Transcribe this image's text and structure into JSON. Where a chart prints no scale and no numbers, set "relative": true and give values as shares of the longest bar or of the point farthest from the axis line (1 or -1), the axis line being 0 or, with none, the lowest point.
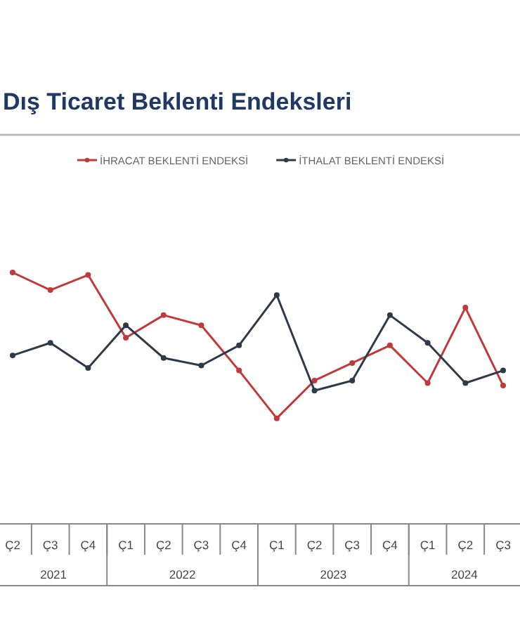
{
  "chart_data": {
    "type": "line",
    "title": "Dış Ticaret Beklenti Endeksleri",
    "relative": true,
    "marker": "circle",
    "legend": "top",
    "categories": [
      "Ç2",
      "Ç3",
      "Ç4",
      "Ç1",
      "Ç2",
      "Ç3",
      "Ç4",
      "Ç1",
      "Ç2",
      "Ç3",
      "Ç4",
      "Ç1",
      "Ç2",
      "Ç3"
    ],
    "series": [
      {
        "name": "İHRACAT BEKLENTİ ENDEKSİ",
        "color": "#c0393b",
        "values": [
          1.0,
          0.93,
          0.99,
          0.74,
          0.83,
          0.79,
          0.61,
          0.42,
          0.57,
          0.64,
          0.71,
          0.56,
          0.86,
          0.55
        ]
      },
      {
        "name": "İTHALAT BEKLENTİ ENDEKSİ",
        "color": "#2e3a4a",
        "values": [
          0.67,
          0.72,
          0.62,
          0.79,
          0.66,
          0.63,
          0.71,
          0.91,
          0.53,
          0.57,
          0.83,
          0.72,
          0.56,
          0.61
        ]
      }
    ],
    "annotations": [
      "2021",
      "2022",
      "2023",
      "2024"
    ]
  }
}
